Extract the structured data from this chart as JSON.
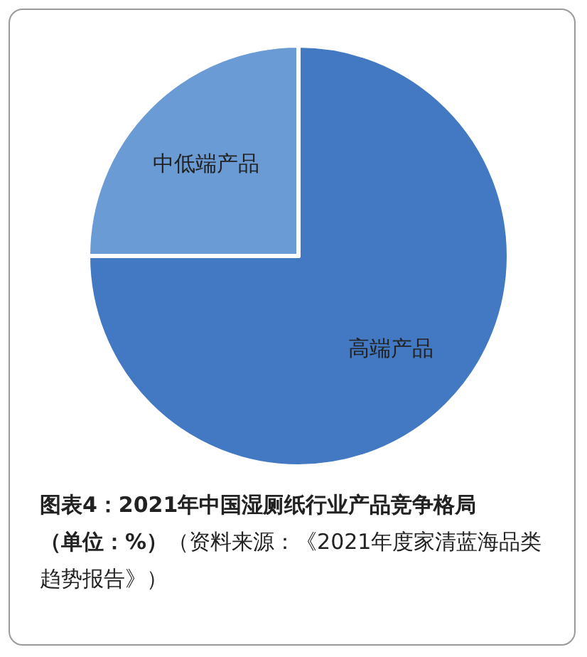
{
  "chart_data": {
    "type": "pie",
    "title": "图表4：2021年中国湿厕纸行业产品竞争格局",
    "subtitle": "（单位：%）",
    "annotations": [
      "（资料来源：《2021年度家清蓝海品类趋势报告》）"
    ],
    "categories": [
      "高端产品",
      "中低端产品"
    ],
    "values": [
      75,
      25
    ],
    "colors": [
      "#4279c2",
      "#6a9bd4"
    ],
    "legend": false
  }
}
